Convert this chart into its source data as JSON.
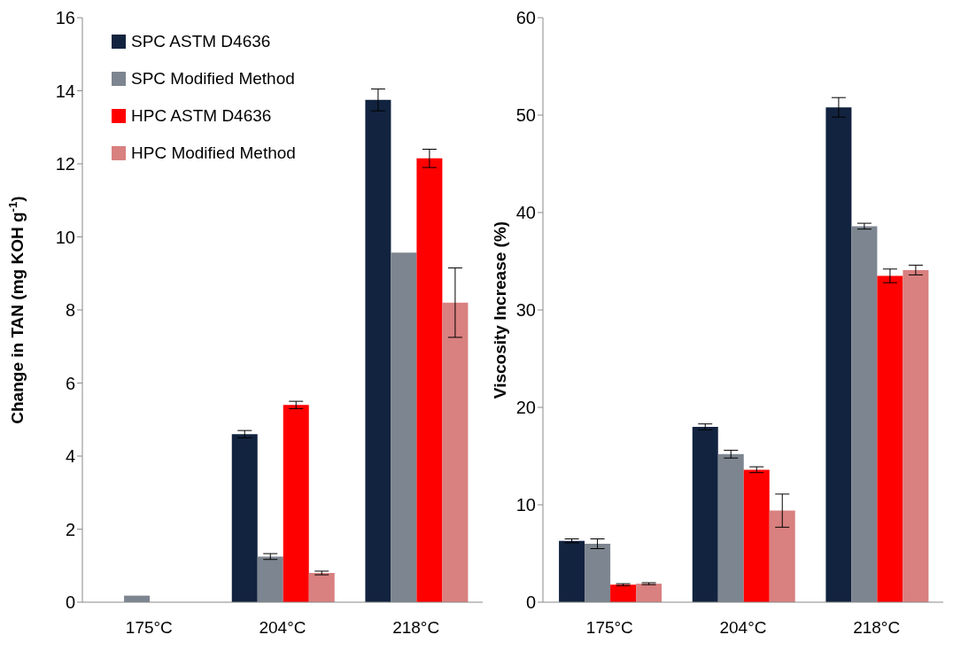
{
  "chart_data": [
    {
      "type": "bar",
      "ylabel": "Change in TAN (mg KOH g$^{-1}$)",
      "categories": [
        "175°C",
        "204°C",
        "218°C"
      ],
      "ylim": [
        0,
        16
      ],
      "yticks": [
        0,
        2,
        4,
        6,
        8,
        10,
        12,
        14,
        16
      ],
      "grid": false,
      "legend": "top left",
      "series": [
        {
          "name": "SPC ASTM D4636",
          "color": "#12233f",
          "values": [
            0,
            4.6,
            13.75
          ],
          "errors": [
            null,
            0.1,
            0.3
          ]
        },
        {
          "name": "SPC Modified Method",
          "color": "#7d8590",
          "values": [
            0.18,
            1.25,
            9.57
          ],
          "errors": [
            null,
            0.08,
            null
          ]
        },
        {
          "name": "HPC ASTM D4636",
          "color": "#ff0000",
          "values": [
            0,
            5.4,
            12.15
          ],
          "errors": [
            null,
            0.1,
            0.25
          ]
        },
        {
          "name": "HPC Modified Method",
          "color": "#d98080",
          "values": [
            0,
            0.8,
            8.2
          ],
          "errors": [
            null,
            0.05,
            0.95
          ]
        }
      ]
    },
    {
      "type": "bar",
      "ylabel": "Viscosity Increase (%)",
      "categories": [
        "175°C",
        "204°C",
        "218°C"
      ],
      "ylim": [
        0,
        60
      ],
      "yticks": [
        0,
        10,
        20,
        30,
        40,
        50,
        60
      ],
      "grid": false,
      "series": [
        {
          "color": "#12233f",
          "values": [
            6.3,
            18.0,
            50.8
          ],
          "errors": [
            0.2,
            0.3,
            1.0
          ]
        },
        {
          "color": "#7d8590",
          "values": [
            6.0,
            15.2,
            38.6
          ],
          "errors": [
            0.5,
            0.4,
            0.3
          ]
        },
        {
          "color": "#ff0000",
          "values": [
            1.8,
            13.6,
            33.5
          ],
          "errors": [
            0.1,
            0.3,
            0.7
          ]
        },
        {
          "color": "#d98080",
          "values": [
            1.9,
            9.4,
            34.1
          ],
          "errors": [
            0.1,
            1.7,
            0.5
          ]
        }
      ]
    }
  ]
}
